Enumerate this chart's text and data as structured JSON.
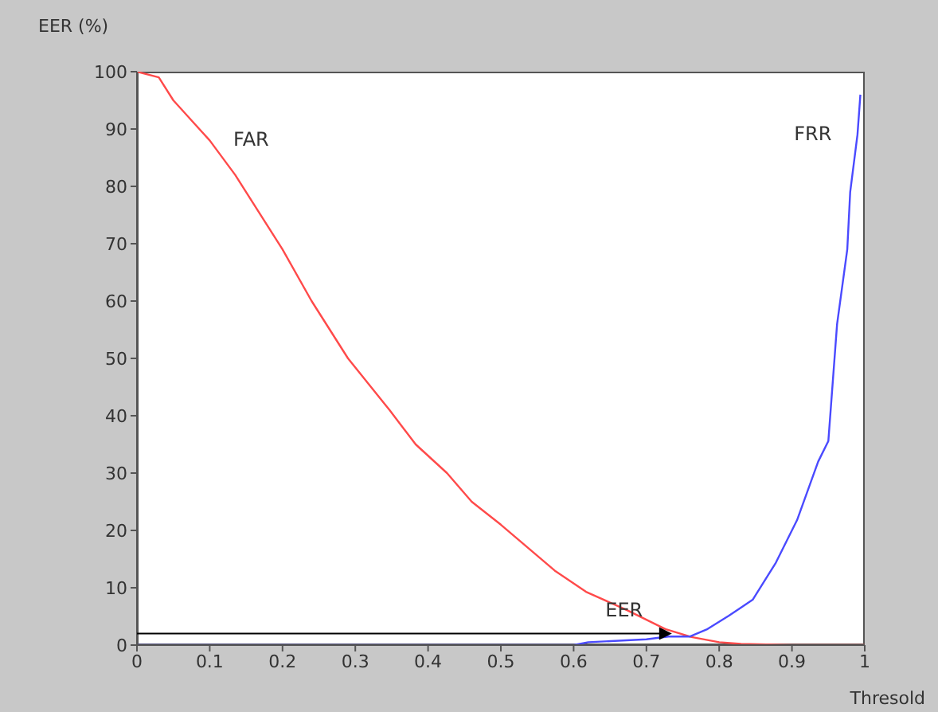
{
  "chart_data": {
    "type": "line",
    "ylabel": "EER (%)",
    "xlabel": "Thresold",
    "xlim": [
      0,
      1
    ],
    "xticks": [
      0,
      0.1,
      0.2,
      0.3,
      0.4,
      0.5,
      0.6,
      0.7,
      0.8,
      0.9,
      1
    ],
    "ylim": [
      0,
      100
    ],
    "yticks": [
      0,
      10,
      20,
      30,
      40,
      50,
      60,
      70,
      80,
      90,
      100
    ],
    "grid": false,
    "legend": false,
    "marker": "none",
    "line_style": "solid",
    "series": [
      {
        "name": "FAR",
        "color": "#ff4a4a",
        "x": [
          0,
          0.03,
          0.05,
          0.1,
          0.135,
          0.16,
          0.2,
          0.24,
          0.29,
          0.347,
          0.383,
          0.426,
          0.46,
          0.5,
          0.574,
          0.617,
          0.675,
          0.726,
          0.762,
          0.8,
          0.83,
          0.9,
          1
        ],
        "values": [
          100,
          99,
          95,
          88,
          82,
          77,
          69,
          60,
          50,
          41,
          35,
          30,
          25,
          21,
          13,
          9.3,
          6,
          2.8,
          1.4,
          0.5,
          0.2,
          0,
          0
        ]
      },
      {
        "name": "FRR",
        "color": "#4a4aff",
        "x": [
          0,
          0.3,
          0.6,
          0.62,
          0.7,
          0.73,
          0.76,
          0.784,
          0.813,
          0.846,
          0.878,
          0.907,
          0.936,
          0.95,
          0.962,
          0.976,
          0.98,
          0.99,
          0.994
        ],
        "values": [
          0,
          0,
          0,
          0.5,
          1,
          1.5,
          1.5,
          2.8,
          5.1,
          7.9,
          14.4,
          21.8,
          32,
          35.6,
          56,
          69,
          79,
          89,
          96
        ]
      }
    ],
    "annotations": [
      {
        "text": "EER",
        "x": 0.735,
        "y": 2
      }
    ]
  }
}
